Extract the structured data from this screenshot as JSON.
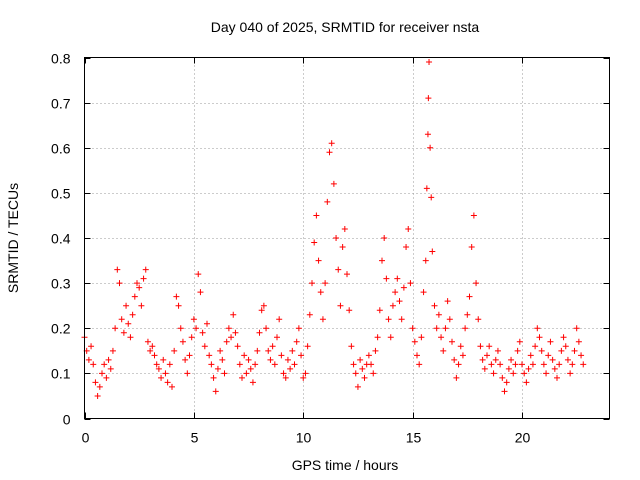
{
  "chart_data": {
    "type": "scatter",
    "title": "Day 040 of 2025, SRMTID for receiver nsta",
    "xlabel": "GPS time / hours",
    "ylabel": "SRMTID / TECUs",
    "xlim": [
      0,
      24
    ],
    "ylim": [
      0,
      0.8
    ],
    "xticks": [
      0,
      5,
      10,
      15,
      20
    ],
    "xtick_labels": [
      "0",
      "5",
      "10",
      "15",
      "20"
    ],
    "yticks": [
      0,
      0.1,
      0.2,
      0.3,
      0.4,
      0.5,
      0.6,
      0.7,
      0.8
    ],
    "ytick_labels": [
      "0",
      "0.1",
      "0.2",
      "0.3",
      "0.4",
      "0.5",
      "0.6",
      "0.7",
      "0.8"
    ],
    "grid": true,
    "marker": "plus",
    "color": "#ff0000",
    "series": [
      {
        "name": "SRMTID",
        "points": [
          [
            0.0,
            0.18
          ],
          [
            0.1,
            0.15
          ],
          [
            0.2,
            0.13
          ],
          [
            0.3,
            0.16
          ],
          [
            0.4,
            0.12
          ],
          [
            0.5,
            0.08
          ],
          [
            0.6,
            0.05
          ],
          [
            0.7,
            0.07
          ],
          [
            0.8,
            0.1
          ],
          [
            0.9,
            0.12
          ],
          [
            1.0,
            0.09
          ],
          [
            1.1,
            0.13
          ],
          [
            1.2,
            0.11
          ],
          [
            1.3,
            0.15
          ],
          [
            1.4,
            0.2
          ],
          [
            1.5,
            0.33
          ],
          [
            1.6,
            0.3
          ],
          [
            1.7,
            0.22
          ],
          [
            1.8,
            0.19
          ],
          [
            1.9,
            0.25
          ],
          [
            2.0,
            0.21
          ],
          [
            2.1,
            0.18
          ],
          [
            2.2,
            0.23
          ],
          [
            2.3,
            0.27
          ],
          [
            2.4,
            0.3
          ],
          [
            2.5,
            0.29
          ],
          [
            2.6,
            0.25
          ],
          [
            2.7,
            0.31
          ],
          [
            2.8,
            0.33
          ],
          [
            2.9,
            0.17
          ],
          [
            3.0,
            0.15
          ],
          [
            3.1,
            0.16
          ],
          [
            3.2,
            0.14
          ],
          [
            3.3,
            0.12
          ],
          [
            3.4,
            0.11
          ],
          [
            3.5,
            0.09
          ],
          [
            3.6,
            0.13
          ],
          [
            3.7,
            0.1
          ],
          [
            3.8,
            0.08
          ],
          [
            3.9,
            0.12
          ],
          [
            4.0,
            0.07
          ],
          [
            4.1,
            0.15
          ],
          [
            4.2,
            0.27
          ],
          [
            4.3,
            0.25
          ],
          [
            4.4,
            0.2
          ],
          [
            4.5,
            0.17
          ],
          [
            4.6,
            0.13
          ],
          [
            4.7,
            0.1
          ],
          [
            4.8,
            0.14
          ],
          [
            4.9,
            0.18
          ],
          [
            5.0,
            0.22
          ],
          [
            5.1,
            0.2
          ],
          [
            5.2,
            0.32
          ],
          [
            5.3,
            0.28
          ],
          [
            5.4,
            0.19
          ],
          [
            5.5,
            0.16
          ],
          [
            5.6,
            0.21
          ],
          [
            5.7,
            0.14
          ],
          [
            5.8,
            0.12
          ],
          [
            5.9,
            0.09
          ],
          [
            6.0,
            0.06
          ],
          [
            6.1,
            0.11
          ],
          [
            6.2,
            0.15
          ],
          [
            6.3,
            0.13
          ],
          [
            6.4,
            0.1
          ],
          [
            6.5,
            0.17
          ],
          [
            6.6,
            0.2
          ],
          [
            6.7,
            0.18
          ],
          [
            6.8,
            0.23
          ],
          [
            6.9,
            0.19
          ],
          [
            7.0,
            0.16
          ],
          [
            7.1,
            0.12
          ],
          [
            7.2,
            0.09
          ],
          [
            7.3,
            0.14
          ],
          [
            7.4,
            0.1
          ],
          [
            7.5,
            0.13
          ],
          [
            7.6,
            0.11
          ],
          [
            7.7,
            0.08
          ],
          [
            7.8,
            0.12
          ],
          [
            7.9,
            0.15
          ],
          [
            8.0,
            0.19
          ],
          [
            8.1,
            0.24
          ],
          [
            8.2,
            0.25
          ],
          [
            8.3,
            0.2
          ],
          [
            8.4,
            0.15
          ],
          [
            8.5,
            0.13
          ],
          [
            8.6,
            0.16
          ],
          [
            8.7,
            0.12
          ],
          [
            8.8,
            0.18
          ],
          [
            8.9,
            0.22
          ],
          [
            9.0,
            0.14
          ],
          [
            9.1,
            0.1
          ],
          [
            9.2,
            0.09
          ],
          [
            9.3,
            0.13
          ],
          [
            9.4,
            0.11
          ],
          [
            9.5,
            0.15
          ],
          [
            9.6,
            0.12
          ],
          [
            9.7,
            0.17
          ],
          [
            9.8,
            0.2
          ],
          [
            9.9,
            0.14
          ],
          [
            10.0,
            0.09
          ],
          [
            10.1,
            0.1
          ],
          [
            10.2,
            0.16
          ],
          [
            10.3,
            0.23
          ],
          [
            10.4,
            0.3
          ],
          [
            10.5,
            0.39
          ],
          [
            10.6,
            0.45
          ],
          [
            10.7,
            0.35
          ],
          [
            10.8,
            0.28
          ],
          [
            10.9,
            0.22
          ],
          [
            11.0,
            0.3
          ],
          [
            11.1,
            0.48
          ],
          [
            11.2,
            0.59
          ],
          [
            11.3,
            0.61
          ],
          [
            11.4,
            0.52
          ],
          [
            11.5,
            0.4
          ],
          [
            11.6,
            0.33
          ],
          [
            11.7,
            0.25
          ],
          [
            11.8,
            0.38
          ],
          [
            11.9,
            0.42
          ],
          [
            12.0,
            0.32
          ],
          [
            12.1,
            0.24
          ],
          [
            12.2,
            0.16
          ],
          [
            12.3,
            0.12
          ],
          [
            12.4,
            0.1
          ],
          [
            12.5,
            0.07
          ],
          [
            12.6,
            0.13
          ],
          [
            12.7,
            0.11
          ],
          [
            12.8,
            0.09
          ],
          [
            12.9,
            0.12
          ],
          [
            13.0,
            0.14
          ],
          [
            13.1,
            0.12
          ],
          [
            13.2,
            0.1
          ],
          [
            13.3,
            0.15
          ],
          [
            13.4,
            0.18
          ],
          [
            13.5,
            0.24
          ],
          [
            13.6,
            0.35
          ],
          [
            13.7,
            0.4
          ],
          [
            13.8,
            0.31
          ],
          [
            13.9,
            0.22
          ],
          [
            14.0,
            0.18
          ],
          [
            14.1,
            0.25
          ],
          [
            14.2,
            0.28
          ],
          [
            14.3,
            0.31
          ],
          [
            14.4,
            0.26
          ],
          [
            14.5,
            0.22
          ],
          [
            14.6,
            0.29
          ],
          [
            14.7,
            0.38
          ],
          [
            14.8,
            0.42
          ],
          [
            14.9,
            0.3
          ],
          [
            15.0,
            0.2
          ],
          [
            15.1,
            0.17
          ],
          [
            15.2,
            0.14
          ],
          [
            15.3,
            0.12
          ],
          [
            15.4,
            0.18
          ],
          [
            15.5,
            0.28
          ],
          [
            15.6,
            0.35
          ],
          [
            15.65,
            0.51
          ],
          [
            15.7,
            0.63
          ],
          [
            15.72,
            0.71
          ],
          [
            15.75,
            0.79
          ],
          [
            15.8,
            0.6
          ],
          [
            15.85,
            0.49
          ],
          [
            15.9,
            0.37
          ],
          [
            16.0,
            0.25
          ],
          [
            16.1,
            0.2
          ],
          [
            16.2,
            0.23
          ],
          [
            16.3,
            0.18
          ],
          [
            16.4,
            0.15
          ],
          [
            16.5,
            0.2
          ],
          [
            16.6,
            0.26
          ],
          [
            16.7,
            0.22
          ],
          [
            16.8,
            0.17
          ],
          [
            16.9,
            0.13
          ],
          [
            17.0,
            0.09
          ],
          [
            17.1,
            0.12
          ],
          [
            17.2,
            0.16
          ],
          [
            17.3,
            0.14
          ],
          [
            17.4,
            0.2
          ],
          [
            17.5,
            0.23
          ],
          [
            17.6,
            0.27
          ],
          [
            17.7,
            0.38
          ],
          [
            17.8,
            0.45
          ],
          [
            17.9,
            0.3
          ],
          [
            18.0,
            0.22
          ],
          [
            18.1,
            0.16
          ],
          [
            18.2,
            0.13
          ],
          [
            18.3,
            0.11
          ],
          [
            18.4,
            0.14
          ],
          [
            18.5,
            0.16
          ],
          [
            18.6,
            0.12
          ],
          [
            18.7,
            0.1
          ],
          [
            18.8,
            0.13
          ],
          [
            18.9,
            0.15
          ],
          [
            19.0,
            0.12
          ],
          [
            19.1,
            0.09
          ],
          [
            19.2,
            0.06
          ],
          [
            19.3,
            0.08
          ],
          [
            19.4,
            0.11
          ],
          [
            19.5,
            0.13
          ],
          [
            19.6,
            0.1
          ],
          [
            19.7,
            0.12
          ],
          [
            19.8,
            0.15
          ],
          [
            19.9,
            0.17
          ],
          [
            20.0,
            0.12
          ],
          [
            20.1,
            0.1
          ],
          [
            20.2,
            0.08
          ],
          [
            20.3,
            0.11
          ],
          [
            20.4,
            0.14
          ],
          [
            20.5,
            0.12
          ],
          [
            20.6,
            0.16
          ],
          [
            20.7,
            0.2
          ],
          [
            20.8,
            0.18
          ],
          [
            20.9,
            0.15
          ],
          [
            21.0,
            0.12
          ],
          [
            21.1,
            0.1
          ],
          [
            21.2,
            0.14
          ],
          [
            21.3,
            0.17
          ],
          [
            21.4,
            0.13
          ],
          [
            21.5,
            0.11
          ],
          [
            21.6,
            0.09
          ],
          [
            21.7,
            0.12
          ],
          [
            21.8,
            0.15
          ],
          [
            21.9,
            0.18
          ],
          [
            22.0,
            0.16
          ],
          [
            22.1,
            0.13
          ],
          [
            22.2,
            0.1
          ],
          [
            22.3,
            0.12
          ],
          [
            22.4,
            0.15
          ],
          [
            22.5,
            0.2
          ],
          [
            22.6,
            0.17
          ],
          [
            22.7,
            0.14
          ],
          [
            22.8,
            0.12
          ]
        ]
      }
    ]
  }
}
